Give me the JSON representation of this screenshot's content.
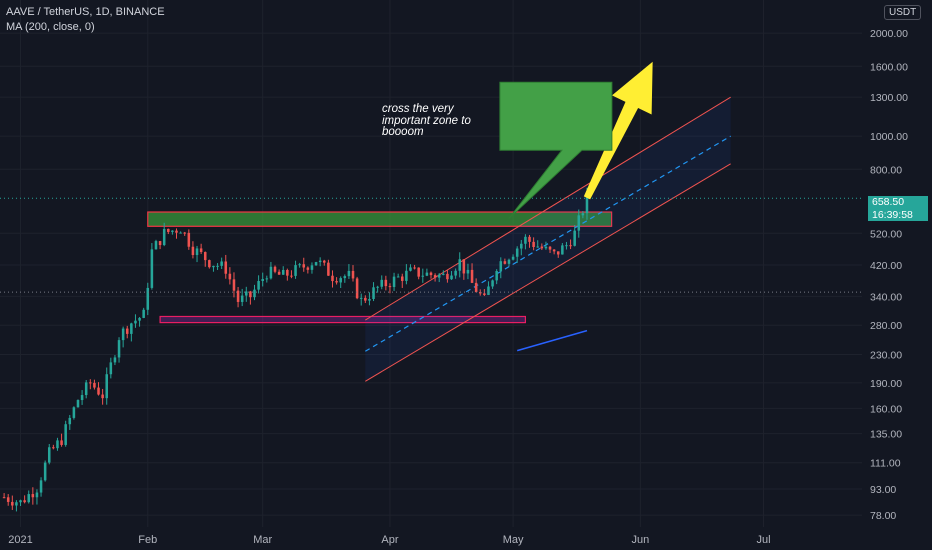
{
  "header": {
    "symbol_line": "AAVE / TetherUS, 1D, BINANCE",
    "indicator_line": "MA (200, close, 0)"
  },
  "currency_badge": "USDT",
  "annotation_text": "cross the very important zone to boooom",
  "last_price_label": "658.50",
  "countdown_label": "16:39:58",
  "colors": {
    "background": "#131722",
    "grid": "#1e222d",
    "bull": "#26a69a",
    "bear": "#ef5350",
    "zone_green": "#3a9e3a",
    "zone_red": "#f23645",
    "arrow": "#ffee33",
    "ma": "#2962ff"
  },
  "chart_data": {
    "type": "candlestick",
    "y_scale": "log",
    "y_range": [
      72,
      2500
    ],
    "x_range": [
      "2020-12-27",
      "2021-07-25"
    ],
    "y_ticks": [
      2000,
      1600,
      1300,
      1000,
      800,
      520,
      420,
      340,
      280,
      230,
      190,
      160,
      135,
      111,
      93,
      78
    ],
    "y_tick_labels": [
      "2000.00",
      "1600.00",
      "1300.00",
      "1000.00",
      "800.00",
      "520.00",
      "420.00",
      "340.00",
      "280.00",
      "230.00",
      "190.00",
      "160.00",
      "135.00",
      "111.00",
      "93.00",
      "78.00"
    ],
    "x_ticks": [
      {
        "date": "2021-01-01",
        "label": "2021"
      },
      {
        "date": "2021-02-01",
        "label": "Feb"
      },
      {
        "date": "2021-03-01",
        "label": "Mar"
      },
      {
        "date": "2021-04-01",
        "label": "Apr"
      },
      {
        "date": "2021-05-01",
        "label": "May"
      },
      {
        "date": "2021-06-01",
        "label": "Jun"
      },
      {
        "date": "2021-07-01",
        "label": "Jul"
      }
    ],
    "horizontal_lines": [
      658.5,
      350
    ],
    "close_series": [
      [
        "2020-12-28",
        88
      ],
      [
        "2021-01-01",
        85
      ],
      [
        "2021-01-05",
        94
      ],
      [
        "2021-01-08",
        118
      ],
      [
        "2021-01-11",
        130
      ],
      [
        "2021-01-15",
        170
      ],
      [
        "2021-01-18",
        190
      ],
      [
        "2021-01-21",
        175
      ],
      [
        "2021-01-25",
        260
      ],
      [
        "2021-01-28",
        285
      ],
      [
        "2021-01-31",
        300
      ],
      [
        "2021-02-02",
        460
      ],
      [
        "2021-02-05",
        520
      ],
      [
        "2021-02-09",
        540
      ],
      [
        "2021-02-12",
        470
      ],
      [
        "2021-02-16",
        430
      ],
      [
        "2021-02-20",
        410
      ],
      [
        "2021-02-23",
        330
      ],
      [
        "2021-02-26",
        340
      ],
      [
        "2021-03-02",
        400
      ],
      [
        "2021-03-06",
        390
      ],
      [
        "2021-03-10",
        410
      ],
      [
        "2021-03-14",
        435
      ],
      [
        "2021-03-18",
        390
      ],
      [
        "2021-03-22",
        390
      ],
      [
        "2021-03-25",
        330
      ],
      [
        "2021-03-29",
        360
      ],
      [
        "2021-04-02",
        380
      ],
      [
        "2021-04-06",
        400
      ],
      [
        "2021-04-10",
        395
      ],
      [
        "2021-04-14",
        390
      ],
      [
        "2021-04-18",
        430
      ],
      [
        "2021-04-21",
        370
      ],
      [
        "2021-04-24",
        330
      ],
      [
        "2021-04-27",
        420
      ],
      [
        "2021-05-01",
        460
      ],
      [
        "2021-05-04",
        500
      ],
      [
        "2021-05-08",
        470
      ],
      [
        "2021-05-11",
        450
      ],
      [
        "2021-05-14",
        480
      ],
      [
        "2021-05-16",
        520
      ],
      [
        "2021-05-18",
        610
      ],
      [
        "2021-05-19",
        658.5
      ]
    ],
    "moving_average_200": [
      [
        "2021-05-02",
        236
      ],
      [
        "2021-05-19",
        270
      ]
    ],
    "resistance_zone": {
      "from": "2021-02-01",
      "to": "2021-05-25",
      "low": 545,
      "high": 600
    },
    "support_zone": {
      "from": "2021-02-04",
      "to": "2021-05-04",
      "low": 285,
      "high": 297
    },
    "channel": {
      "from": {
        "date": "2021-03-26",
        "upper": 290,
        "mid": 235,
        "lower": 192
      },
      "to": {
        "date": "2021-06-23",
        "upper": 1300,
        "mid": 1000,
        "lower": 830
      }
    },
    "projection_arrow": {
      "from": [
        "2021-05-19",
        660
      ],
      "to": [
        "2021-06-04",
        1650
      ]
    },
    "callout": {
      "date": "2021-04-29",
      "price": 1390,
      "pointer_to": [
        "2021-04-30",
        575
      ]
    }
  }
}
